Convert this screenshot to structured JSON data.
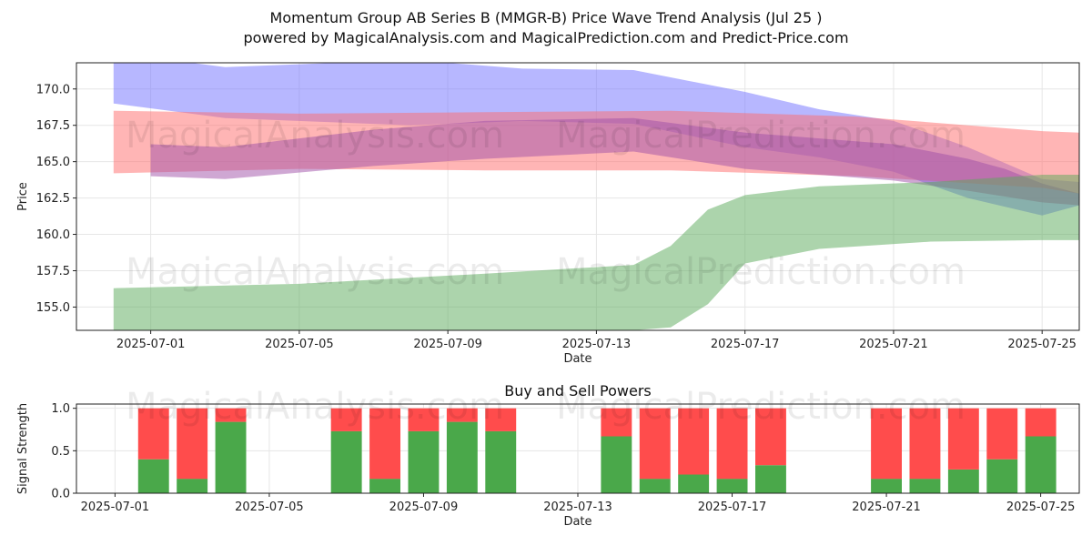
{
  "header": {
    "title": "Momentum Group AB Series B (MMGR-B) Price Wave Trend Analysis (Jul 25 )",
    "subtitle": "powered by MagicalAnalysis.com and MagicalPrediction.com and Predict-Price.com"
  },
  "watermarks": [
    "MagicalAnalysis.com",
    "MagicalPrediction.com"
  ],
  "colors": {
    "blue": "#6f6fff",
    "red": "#ff6b6b",
    "purple": "#a04fa8",
    "green": "#5aaa5a",
    "buy": "#4aa84a",
    "sell": "#ff4c4c"
  },
  "chart_data": [
    {
      "type": "area",
      "title": "",
      "xlabel": "Date",
      "ylabel": "Price",
      "xlim": [
        "2025-06-29",
        "2025-07-26"
      ],
      "ylim": [
        153.4,
        171.8
      ],
      "grid": true,
      "x_ticks": [
        "2025-07-01",
        "2025-07-05",
        "2025-07-09",
        "2025-07-13",
        "2025-07-17",
        "2025-07-21",
        "2025-07-25"
      ],
      "y_ticks": [
        155.0,
        157.5,
        160.0,
        162.5,
        165.0,
        167.5,
        170.0
      ],
      "series": [
        {
          "color": "blue",
          "x": [
            "2025-06-30",
            "2025-07-03",
            "2025-07-08",
            "2025-07-11",
            "2025-07-14",
            "2025-07-17",
            "2025-07-19",
            "2025-07-21",
            "2025-07-23",
            "2025-07-25",
            "2025-07-26"
          ],
          "upper": [
            172.5,
            171.5,
            172.0,
            171.4,
            171.3,
            169.8,
            168.6,
            167.8,
            166.0,
            163.8,
            163.6
          ],
          "lower": [
            169.0,
            168.0,
            167.5,
            167.8,
            167.6,
            166.0,
            165.3,
            164.3,
            162.5,
            161.3,
            162.0
          ]
        },
        {
          "color": "red",
          "x": [
            "2025-06-30",
            "2025-07-05",
            "2025-07-10",
            "2025-07-15",
            "2025-07-20",
            "2025-07-25",
            "2025-07-26"
          ],
          "upper": [
            168.5,
            168.3,
            168.4,
            168.5,
            168.1,
            167.1,
            167.0
          ],
          "lower": [
            164.2,
            164.5,
            164.4,
            164.4,
            164.0,
            163.2,
            162.8
          ]
        },
        {
          "color": "purple",
          "x": [
            "2025-07-01",
            "2025-07-03",
            "2025-07-07",
            "2025-07-10",
            "2025-07-14",
            "2025-07-17",
            "2025-07-21",
            "2025-07-23",
            "2025-07-24",
            "2025-07-25",
            "2025-07-26"
          ],
          "upper": [
            166.2,
            166.0,
            167.2,
            167.8,
            168.0,
            167.0,
            166.2,
            165.2,
            164.5,
            163.5,
            162.8
          ],
          "lower": [
            164.0,
            163.8,
            164.7,
            165.2,
            165.7,
            164.5,
            163.7,
            163.0,
            162.6,
            162.2,
            162.0
          ]
        },
        {
          "color": "green",
          "x": [
            "2025-06-30",
            "2025-07-05",
            "2025-07-10",
            "2025-07-14",
            "2025-07-15",
            "2025-07-16",
            "2025-07-17",
            "2025-07-19",
            "2025-07-22",
            "2025-07-25",
            "2025-07-26"
          ],
          "upper": [
            156.3,
            156.6,
            157.3,
            157.9,
            159.2,
            161.7,
            162.7,
            163.3,
            163.6,
            164.1,
            164.1
          ],
          "lower": [
            153.4,
            153.4,
            153.4,
            153.4,
            153.6,
            155.2,
            158.0,
            159.0,
            159.5,
            159.6,
            159.6
          ]
        }
      ]
    },
    {
      "type": "bar",
      "title": "Buy and Sell Powers",
      "xlabel": "Date",
      "ylabel": "Signal Strength",
      "xlim": [
        "2025-06-30",
        "2025-07-26"
      ],
      "ylim": [
        0,
        1.05
      ],
      "grid": true,
      "x_ticks": [
        "2025-07-01",
        "2025-07-05",
        "2025-07-09",
        "2025-07-13",
        "2025-07-17",
        "2025-07-21",
        "2025-07-25"
      ],
      "y_ticks": [
        0.0,
        0.5,
        1.0
      ],
      "categories": [
        "2025-07-02",
        "2025-07-03",
        "2025-07-04",
        "2025-07-07",
        "2025-07-08",
        "2025-07-09",
        "2025-07-10",
        "2025-07-11",
        "2025-07-14",
        "2025-07-15",
        "2025-07-16",
        "2025-07-17",
        "2025-07-18",
        "2025-07-21",
        "2025-07-22",
        "2025-07-23",
        "2025-07-24",
        "2025-07-25"
      ],
      "series": [
        {
          "role": "buy",
          "values": [
            0.4,
            0.17,
            0.84,
            0.73,
            0.17,
            0.73,
            0.84,
            0.73,
            0.67,
            0.17,
            0.22,
            0.17,
            0.33,
            0.17,
            0.17,
            0.28,
            0.4,
            0.67
          ]
        },
        {
          "role": "sell",
          "values": [
            0.6,
            0.83,
            0.16,
            0.27,
            0.83,
            0.27,
            0.16,
            0.27,
            0.33,
            0.83,
            0.78,
            0.83,
            0.67,
            0.83,
            0.83,
            0.72,
            0.6,
            0.33
          ]
        }
      ]
    }
  ]
}
